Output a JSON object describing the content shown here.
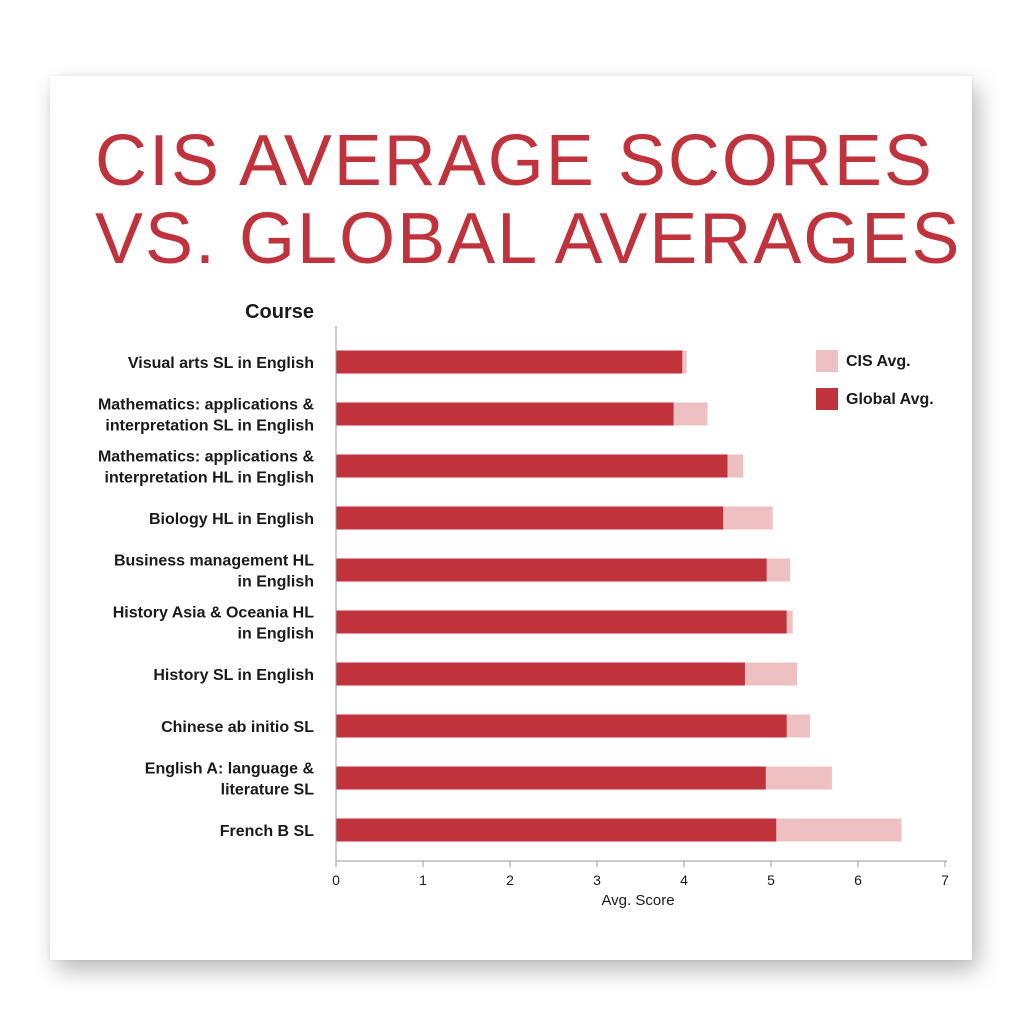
{
  "colors": {
    "title": "#c0323c",
    "cis": "#efc0c2",
    "global": "#c0323c",
    "axis": "#999999"
  },
  "chart_data": {
    "type": "bar",
    "orientation": "horizontal",
    "stacked_overlay": true,
    "title": "CIS AVERAGE SCORES\nVS. GLOBAL AVERAGES",
    "ylabel": "Course",
    "xlabel": "Avg. Score",
    "xlim": [
      0,
      7
    ],
    "xticks": [
      0,
      1,
      2,
      3,
      4,
      5,
      6,
      7
    ],
    "grid": false,
    "legend_position": "top-right",
    "categories": [
      "Visual arts SL in English",
      "Mathematics: applications &\ninterpretation SL in English",
      "Mathematics: applications &\ninterpretation HL in English",
      "Biology HL in English",
      "Business management HL\nin English",
      "History Asia & Oceania HL\nin English",
      "History SL in English",
      "Chinese ab initio SL",
      "English A: language &\nliterature SL",
      "French B SL"
    ],
    "series": [
      {
        "name": "CIS Avg.",
        "values": [
          4.03,
          4.27,
          4.68,
          5.02,
          5.22,
          5.25,
          5.3,
          5.45,
          5.7,
          6.5
        ]
      },
      {
        "name": "Global Avg.",
        "values": [
          3.98,
          3.88,
          4.5,
          4.45,
          4.95,
          5.18,
          4.7,
          5.18,
          4.94,
          5.06
        ]
      }
    ]
  }
}
